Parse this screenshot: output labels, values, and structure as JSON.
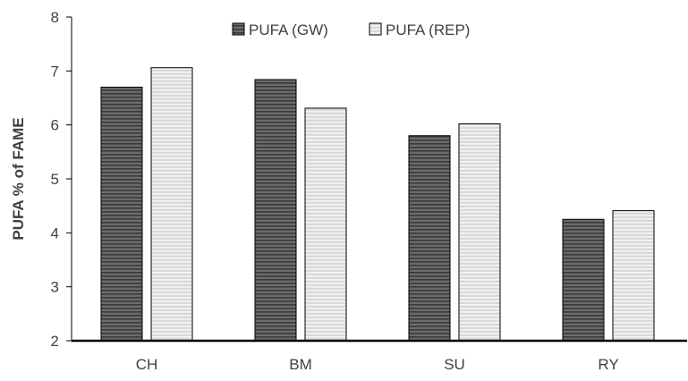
{
  "chart_data": {
    "type": "bar",
    "title": "",
    "xlabel": "",
    "ylabel": "PUFA % of FAME",
    "categories": [
      "CH",
      "BM",
      "SU",
      "RY"
    ],
    "series": [
      {
        "name": "PUFA (GW)",
        "values": [
          6.7,
          6.84,
          5.8,
          4.25
        ]
      },
      {
        "name": "PUFA (REP)",
        "values": [
          7.06,
          6.31,
          6.02,
          4.41
        ]
      }
    ],
    "ylim": [
      2,
      8
    ],
    "yticks": [
      2,
      3,
      4,
      5,
      6,
      7,
      8
    ],
    "grid": false,
    "legend_position": "top-center",
    "colors": {
      "series_fill": [
        "#6b6b6b",
        "#d9d9d9"
      ],
      "stripe": [
        "#3a3a3a",
        "#f5f5f5"
      ],
      "axis": "#000000",
      "text": "#404040"
    }
  }
}
